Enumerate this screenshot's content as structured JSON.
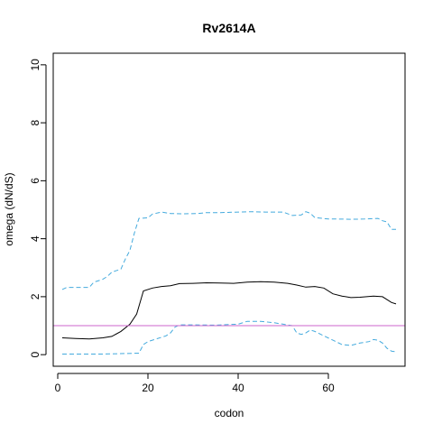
{
  "chart_data": {
    "type": "line",
    "title": "Rv2614A",
    "xlabel": "codon",
    "ylabel": "omega (dN/dS)",
    "xlim": [
      -1,
      77
    ],
    "ylim": [
      -0.4,
      10.4
    ],
    "x_ticks": [
      0,
      20,
      40,
      60
    ],
    "y_ticks": [
      0,
      2,
      4,
      6,
      8,
      10
    ],
    "reference_line": {
      "y": 1,
      "color": "#cc66cc"
    },
    "series": [
      {
        "style": "solid",
        "color": "#000000",
        "points": [
          [
            1,
            0.58
          ],
          [
            4,
            0.56
          ],
          [
            7,
            0.54
          ],
          [
            10,
            0.58
          ],
          [
            12,
            0.63
          ],
          [
            14,
            0.8
          ],
          [
            16,
            1.05
          ],
          [
            17.5,
            1.4
          ],
          [
            19,
            2.2
          ],
          [
            21,
            2.3
          ],
          [
            23,
            2.35
          ],
          [
            25,
            2.38
          ],
          [
            27,
            2.45
          ],
          [
            30,
            2.46
          ],
          [
            33,
            2.48
          ],
          [
            36,
            2.47
          ],
          [
            39,
            2.46
          ],
          [
            42,
            2.5
          ],
          [
            45,
            2.52
          ],
          [
            48,
            2.5
          ],
          [
            51,
            2.46
          ],
          [
            53,
            2.4
          ],
          [
            55,
            2.33
          ],
          [
            57,
            2.35
          ],
          [
            59,
            2.3
          ],
          [
            61,
            2.1
          ],
          [
            63,
            2.02
          ],
          [
            65,
            1.97
          ],
          [
            67,
            1.98
          ],
          [
            70,
            2.02
          ],
          [
            72,
            2.0
          ],
          [
            74,
            1.8
          ],
          [
            75,
            1.75
          ]
        ]
      },
      {
        "style": "dashed",
        "color": "#44aadd",
        "points": [
          [
            1,
            2.25
          ],
          [
            2,
            2.32
          ],
          [
            4,
            2.32
          ],
          [
            7,
            2.32
          ],
          [
            8,
            2.5
          ],
          [
            10,
            2.6
          ],
          [
            11,
            2.7
          ],
          [
            12,
            2.85
          ],
          [
            14,
            2.95
          ],
          [
            15,
            3.3
          ],
          [
            16,
            3.6
          ],
          [
            17,
            4.2
          ],
          [
            18,
            4.7
          ],
          [
            20,
            4.72
          ],
          [
            21,
            4.85
          ],
          [
            23,
            4.92
          ],
          [
            25,
            4.87
          ],
          [
            28,
            4.86
          ],
          [
            31,
            4.87
          ],
          [
            33,
            4.9
          ],
          [
            36,
            4.9
          ],
          [
            40,
            4.92
          ],
          [
            43,
            4.93
          ],
          [
            46,
            4.92
          ],
          [
            50,
            4.92
          ],
          [
            52,
            4.8
          ],
          [
            54,
            4.82
          ],
          [
            55,
            4.93
          ],
          [
            56,
            4.88
          ],
          [
            57,
            4.73
          ],
          [
            60,
            4.68
          ],
          [
            62,
            4.68
          ],
          [
            65,
            4.67
          ],
          [
            68,
            4.68
          ],
          [
            71,
            4.7
          ],
          [
            72,
            4.62
          ],
          [
            73,
            4.58
          ],
          [
            74,
            4.32
          ],
          [
            75,
            4.32
          ]
        ]
      },
      {
        "style": "dashed",
        "color": "#44aadd",
        "points": [
          [
            1,
            0.02
          ],
          [
            5,
            0.02
          ],
          [
            10,
            0.02
          ],
          [
            15,
            0.04
          ],
          [
            18,
            0.05
          ],
          [
            19,
            0.35
          ],
          [
            20,
            0.45
          ],
          [
            22,
            0.55
          ],
          [
            24,
            0.65
          ],
          [
            25,
            0.75
          ],
          [
            26,
            0.95
          ],
          [
            27,
            1.03
          ],
          [
            30,
            1.03
          ],
          [
            35,
            1.02
          ],
          [
            38,
            1.04
          ],
          [
            40,
            1.05
          ],
          [
            42,
            1.15
          ],
          [
            45,
            1.15
          ],
          [
            48,
            1.1
          ],
          [
            50,
            1.05
          ],
          [
            52,
            1.0
          ],
          [
            53,
            0.75
          ],
          [
            54,
            0.7
          ],
          [
            55,
            0.75
          ],
          [
            56,
            0.85
          ],
          [
            57,
            0.8
          ],
          [
            59,
            0.65
          ],
          [
            61,
            0.5
          ],
          [
            63,
            0.35
          ],
          [
            65,
            0.32
          ],
          [
            67,
            0.4
          ],
          [
            69,
            0.45
          ],
          [
            70,
            0.52
          ],
          [
            71,
            0.5
          ],
          [
            72,
            0.4
          ],
          [
            73,
            0.22
          ],
          [
            74,
            0.12
          ],
          [
            75,
            0.1
          ]
        ]
      }
    ]
  }
}
